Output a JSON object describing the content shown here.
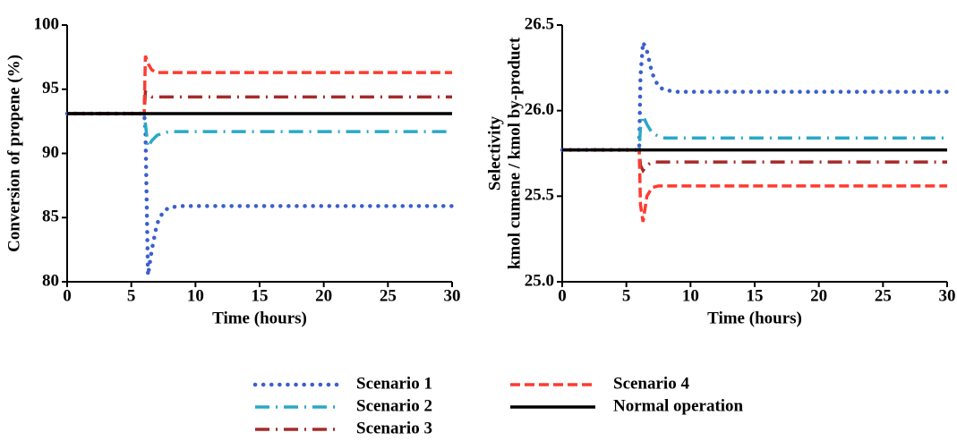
{
  "chart_data": [
    {
      "type": "line",
      "ylabel": [
        "Conversion of propene (%)"
      ],
      "xlabel": "Time (hours)",
      "x": [
        0,
        6,
        6.1,
        6.3,
        6.6,
        7,
        7.5,
        8,
        9,
        30
      ],
      "xlim": [
        0,
        30
      ],
      "xticks": [
        0,
        5,
        10,
        15,
        20,
        25,
        30
      ],
      "ylim": [
        80,
        100
      ],
      "yticks": [
        80,
        85,
        90,
        95,
        100
      ],
      "series": [
        {
          "name": "Scenario 1",
          "color": "#3a5fcd",
          "style": "dotted",
          "values": [
            93.1,
            93.1,
            92,
            80.5,
            82.5,
            84.5,
            85.5,
            85.8,
            85.9,
            85.9
          ]
        },
        {
          "name": "Scenario 2",
          "color": "#2aa8c8",
          "style": "dashdot",
          "values": [
            93.1,
            93.1,
            92.3,
            90.5,
            91,
            91.4,
            91.6,
            91.7,
            91.7,
            91.7
          ]
        },
        {
          "name": "Scenario 3",
          "color": "#a52a2a",
          "style": "dashdot",
          "values": [
            93.1,
            93.1,
            94.8,
            94.6,
            94.4,
            94.4,
            94.4,
            94.4,
            94.4,
            94.4
          ]
        },
        {
          "name": "Scenario 4",
          "color": "#ff3b2f",
          "style": "dashed",
          "values": [
            93.1,
            93.1,
            97.6,
            97,
            96.5,
            96.3,
            96.3,
            96.3,
            96.3,
            96.3
          ]
        },
        {
          "name": "Normal operation",
          "color": "#000000",
          "style": "solid",
          "values": [
            93.1,
            93.1,
            93.1,
            93.1,
            93.1,
            93.1,
            93.1,
            93.1,
            93.1,
            93.1
          ]
        }
      ]
    },
    {
      "type": "line",
      "ylabel": [
        "Selectivity",
        "kmol cumene / kmol by-product"
      ],
      "xlabel": "Time (hours)",
      "x": [
        0,
        6,
        6.1,
        6.3,
        6.6,
        7,
        7.5,
        8,
        9,
        30
      ],
      "xlim": [
        0,
        30
      ],
      "xticks": [
        0,
        5,
        10,
        15,
        20,
        25,
        30
      ],
      "ylim": [
        25,
        26.5
      ],
      "yticks": [
        {
          "value": 25,
          "label": "25.0"
        },
        {
          "value": 25.5,
          "label": "25.5"
        },
        {
          "value": 26,
          "label": "26.0"
        },
        {
          "value": 26.5,
          "label": "26.5"
        }
      ],
      "series": [
        {
          "color": "#3a5fcd",
          "style": "dotted",
          "values": [
            25.77,
            25.77,
            26.2,
            26.4,
            26.35,
            26.22,
            26.14,
            26.12,
            26.11,
            26.11
          ]
        },
        {
          "color": "#2aa8c8",
          "style": "dashdot",
          "values": [
            25.77,
            25.77,
            25.9,
            25.97,
            25.92,
            25.87,
            25.85,
            25.84,
            25.84,
            25.84
          ]
        },
        {
          "color": "#a52a2a",
          "style": "dashdot",
          "values": [
            25.77,
            25.77,
            25.68,
            25.65,
            25.68,
            25.7,
            25.7,
            25.7,
            25.7,
            25.7
          ]
        },
        {
          "color": "#ff3b2f",
          "style": "dashed",
          "values": [
            25.77,
            25.77,
            25.45,
            25.35,
            25.5,
            25.55,
            25.56,
            25.56,
            25.56,
            25.56
          ]
        },
        {
          "color": "#000000",
          "style": "solid",
          "values": [
            25.77,
            25.77,
            25.77,
            25.77,
            25.77,
            25.77,
            25.77,
            25.77,
            25.77,
            25.77
          ]
        }
      ]
    }
  ]
}
